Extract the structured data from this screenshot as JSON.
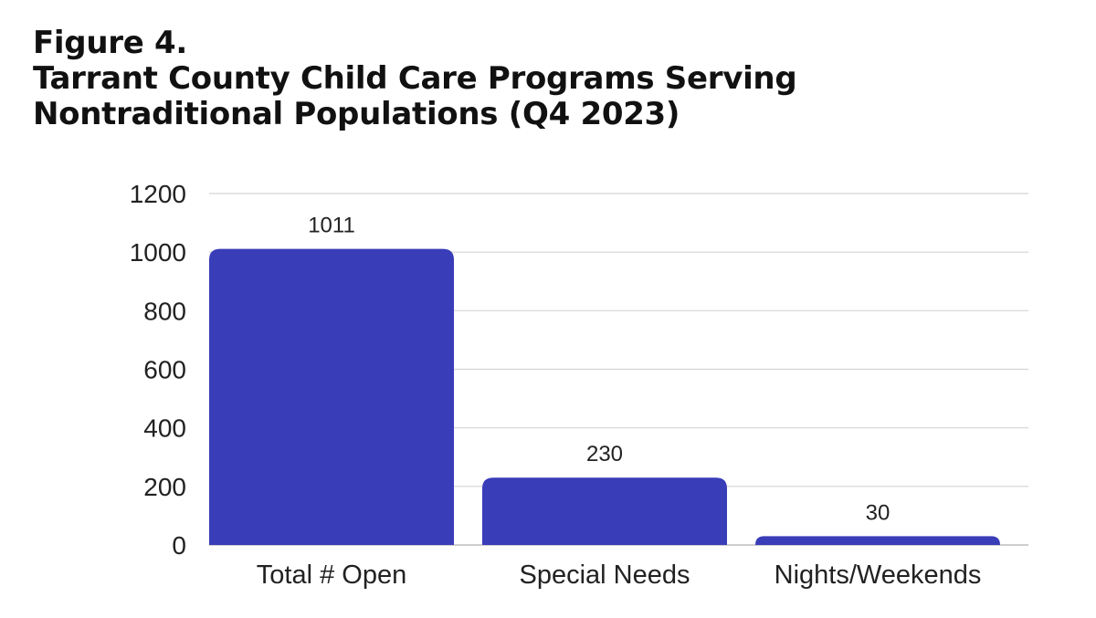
{
  "figure": {
    "label": "Figure 4.",
    "title": "Tarrant County Child Care Programs Serving Nontraditional Populations (Q4 2023)"
  },
  "colors": {
    "bar": "#3a3db8",
    "grid": "#d4d4d4",
    "axis": "#bdbdbd"
  },
  "chart_data": {
    "type": "bar",
    "categories": [
      "Total # Open",
      "Special Needs",
      "Nights/Weekends"
    ],
    "values": [
      1011,
      230,
      30
    ],
    "title": "Tarrant County Child Care Programs Serving Nontraditional Populations (Q4 2023)",
    "xlabel": "",
    "ylabel": "",
    "ylim": [
      0,
      1200
    ],
    "yticks": [
      0,
      200,
      400,
      600,
      800,
      1000,
      1200
    ],
    "grid": true,
    "legend": "none",
    "data_labels": true
  }
}
